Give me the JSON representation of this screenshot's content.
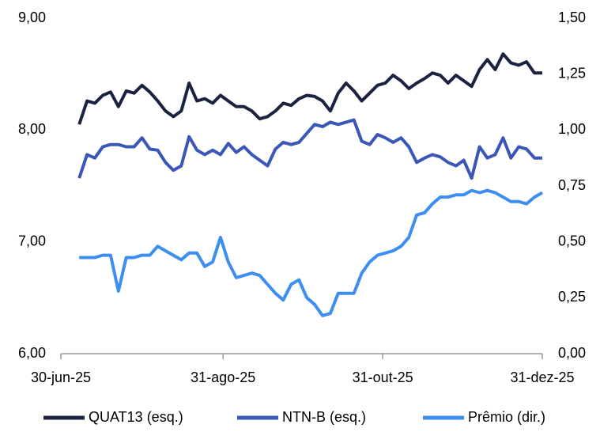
{
  "chart_data": {
    "type": "line",
    "x": [
      "2025-07-07",
      "2025-07-10",
      "2025-07-13",
      "2025-07-16",
      "2025-07-19",
      "2025-07-22",
      "2025-07-25",
      "2025-07-28",
      "2025-07-31",
      "2025-08-03",
      "2025-08-06",
      "2025-08-09",
      "2025-08-12",
      "2025-08-15",
      "2025-08-18",
      "2025-08-21",
      "2025-08-24",
      "2025-08-27",
      "2025-08-30",
      "2025-09-02",
      "2025-09-05",
      "2025-09-08",
      "2025-09-11",
      "2025-09-14",
      "2025-09-17",
      "2025-09-20",
      "2025-09-23",
      "2025-09-26",
      "2025-09-29",
      "2025-10-02",
      "2025-10-05",
      "2025-10-08",
      "2025-10-11",
      "2025-10-14",
      "2025-10-17",
      "2025-10-20",
      "2025-10-23",
      "2025-10-26",
      "2025-10-29",
      "2025-11-01",
      "2025-11-04",
      "2025-11-07",
      "2025-11-10",
      "2025-11-13",
      "2025-11-16",
      "2025-11-19",
      "2025-11-22",
      "2025-11-25",
      "2025-11-28",
      "2025-12-01",
      "2025-12-04",
      "2025-12-07",
      "2025-12-10",
      "2025-12-13",
      "2025-12-16",
      "2025-12-19",
      "2025-12-22",
      "2025-12-25",
      "2025-12-28",
      "2025-12-31"
    ],
    "series": [
      {
        "name": "QUAT13 (esq.)",
        "color": "#1c2340",
        "values": [
          8.05,
          8.26,
          8.24,
          8.31,
          8.34,
          8.21,
          8.35,
          8.33,
          8.4,
          8.34,
          8.26,
          8.17,
          8.12,
          8.17,
          8.42,
          8.26,
          8.28,
          8.24,
          8.31,
          8.26,
          8.21,
          8.21,
          8.17,
          8.1,
          8.12,
          8.17,
          8.24,
          8.22,
          8.28,
          8.31,
          8.3,
          8.26,
          8.17,
          8.33,
          8.42,
          8.35,
          8.26,
          8.33,
          8.4,
          8.42,
          8.49,
          8.44,
          8.37,
          8.42,
          8.46,
          8.51,
          8.49,
          8.42,
          8.49,
          8.44,
          8.39,
          8.54,
          8.63,
          8.54,
          8.68,
          8.6,
          8.58,
          8.61,
          8.51,
          8.51
        ]
      },
      {
        "name": "NTN-B (esq.)",
        "color": "#3a57b8",
        "values": [
          7.57,
          7.78,
          7.75,
          7.85,
          7.87,
          7.87,
          7.85,
          7.85,
          7.93,
          7.83,
          7.82,
          7.71,
          7.64,
          7.68,
          7.94,
          7.82,
          7.78,
          7.82,
          7.78,
          7.88,
          7.8,
          7.85,
          7.78,
          7.73,
          7.68,
          7.83,
          7.89,
          7.87,
          7.89,
          7.97,
          8.05,
          8.03,
          8.07,
          8.05,
          8.07,
          8.09,
          7.9,
          7.87,
          7.96,
          7.93,
          7.89,
          7.93,
          7.85,
          7.71,
          7.75,
          7.78,
          7.76,
          7.71,
          7.68,
          7.73,
          7.57,
          7.85,
          7.75,
          7.78,
          7.93,
          7.75,
          7.85,
          7.83,
          7.75,
          7.75
        ]
      },
      {
        "name": "Prêmio (dir.)",
        "color": "#3d8ef0",
        "axis": "y2",
        "values": [
          0.43,
          0.43,
          0.43,
          0.44,
          0.44,
          0.28,
          0.43,
          0.43,
          0.44,
          0.44,
          0.48,
          0.46,
          0.44,
          0.42,
          0.45,
          0.45,
          0.39,
          0.41,
          0.52,
          0.41,
          0.34,
          0.35,
          0.36,
          0.35,
          0.31,
          0.27,
          0.24,
          0.31,
          0.33,
          0.25,
          0.22,
          0.17,
          0.18,
          0.27,
          0.27,
          0.27,
          0.36,
          0.41,
          0.44,
          0.45,
          0.46,
          0.48,
          0.52,
          0.62,
          0.63,
          0.67,
          0.7,
          0.7,
          0.71,
          0.71,
          0.73,
          0.72,
          0.73,
          0.72,
          0.7,
          0.68,
          0.68,
          0.67,
          0.7,
          0.72
        ]
      }
    ],
    "xlim": [
      "2025-06-30",
      "2025-12-31"
    ],
    "xticks": [
      {
        "value": "2025-06-30",
        "label": "30-jun-25"
      },
      {
        "value": "2025-08-31",
        "label": "31-ago-25"
      },
      {
        "value": "2025-10-31",
        "label": "31-out-25"
      },
      {
        "value": "2025-12-31",
        "label": "31-dez-25"
      }
    ],
    "ylim": [
      6,
      9
    ],
    "yticks": [
      {
        "value": 6,
        "label": "6,00"
      },
      {
        "value": 7,
        "label": "7,00"
      },
      {
        "value": 8,
        "label": "8,00"
      },
      {
        "value": 9,
        "label": "9,00"
      }
    ],
    "y2lim": [
      0,
      1.5
    ],
    "y2ticks": [
      {
        "value": 0,
        "label": "0,00"
      },
      {
        "value": 0.25,
        "label": "0,25"
      },
      {
        "value": 0.5,
        "label": "0,50"
      },
      {
        "value": 0.75,
        "label": "0,75"
      },
      {
        "value": 1,
        "label": "1,00"
      },
      {
        "value": 1.25,
        "label": "1,25"
      },
      {
        "value": 1.5,
        "label": "1,50"
      }
    ],
    "legend": "bottom"
  }
}
